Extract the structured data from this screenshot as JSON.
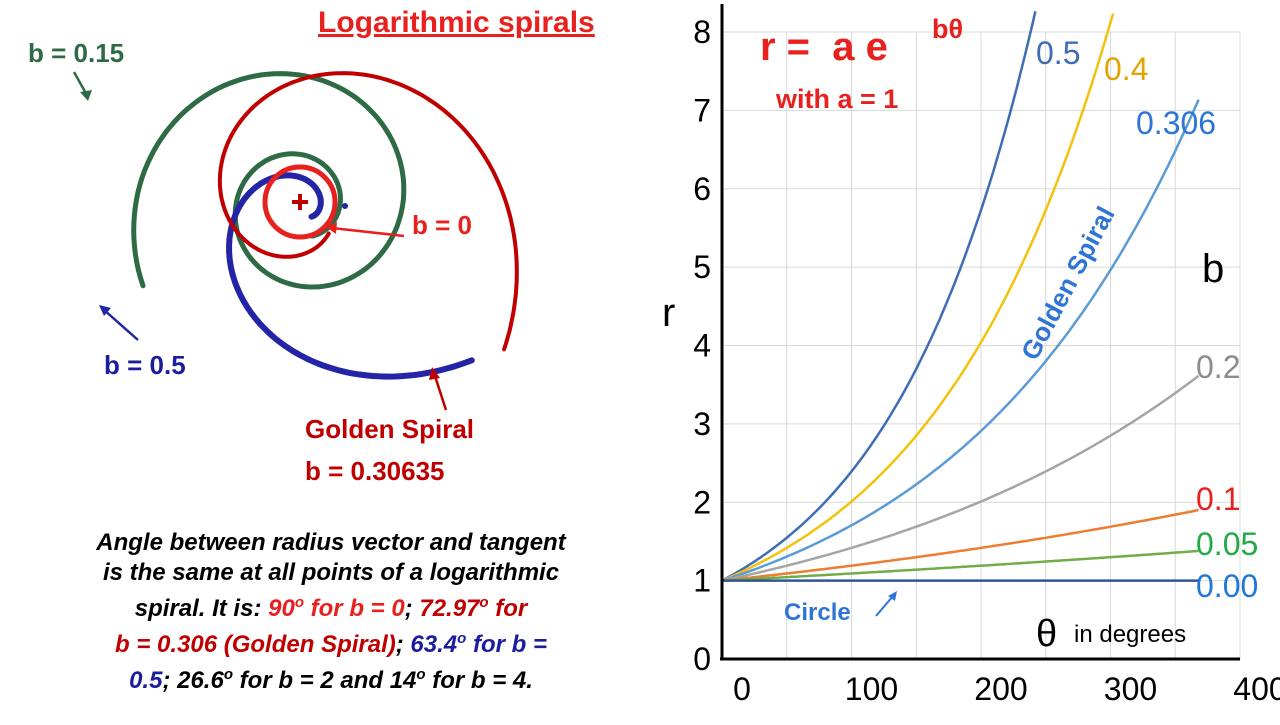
{
  "title": "Logarithmic spirals",
  "spiral_labels": {
    "b015": "b = 0.15",
    "b05": "b = 0.5",
    "b0": "b = 0",
    "golden_name": "Golden Spiral",
    "golden_b": "b = 0.30635"
  },
  "caption": {
    "line1": "Angle between radius vector and tangent",
    "line2": "is the same at all points of a logarithmic",
    "line3a": "spiral.  It is: ",
    "line3b": "90",
    "line3b_sup": "o",
    "line3c": " for b = 0",
    "line3d": "; ",
    "line3e": "72.97",
    "line3e_sup": "o",
    "line3f": " for",
    "line4a": "b = 0.306 (Golden Spiral)",
    "line4b": "; ",
    "line4c": "63.4",
    "line4c_sup": "o",
    "line4d": " for b =",
    "line5a": "0.5",
    "line5b": "; 26.6",
    "line5b_sup": "o",
    "line5c": " for b = 2 and 14",
    "line5c_sup": "o",
    "line5d": " for b = 4."
  },
  "colors": {
    "red": "#e8201e",
    "dark_red": "#c00000",
    "green": "#2e6b45",
    "blue": "#2424a6",
    "b_0_5": "#3f6db5",
    "b_0_4": "#f4c20d",
    "b_0_306": "#5b9bd5",
    "b_0_2": "#a5a5a5",
    "b_0_1": "#ed7d31",
    "b_0_05": "#70ad47",
    "b_0_00": "#2f5597"
  },
  "chart_data": {
    "type": "line",
    "formula_main": "r =  a e",
    "formula_exp": "bθ",
    "formula_sub": "with a = 1",
    "xlabel_symbol": "θ",
    "xlabel_text": "in degrees",
    "ylabel": "r",
    "legend_title": "b",
    "xlim": [
      0,
      400
    ],
    "ylim": [
      0,
      8
    ],
    "x_ticks": [
      "0",
      "100",
      "200",
      "300",
      "400"
    ],
    "y_ticks": [
      "0",
      "1",
      "2",
      "3",
      "4",
      "5",
      "6",
      "7",
      "8"
    ],
    "grid": true,
    "series": [
      {
        "name": "0.5",
        "b": 0.5,
        "color": "#3f6db5",
        "label_color": "#3f6db5"
      },
      {
        "name": "0.4",
        "b": 0.4,
        "color": "#f4c20d",
        "label_color": "#e3a400"
      },
      {
        "name": "0.306",
        "b": 0.306,
        "color": "#5b9bd5",
        "label_color": "#2e75d6"
      },
      {
        "name": "0.2",
        "b": 0.2,
        "color": "#a5a5a5",
        "label_color": "#8c8c8c"
      },
      {
        "name": "0.1",
        "b": 0.1,
        "color": "#ed7d31",
        "label_color": "#e8201e"
      },
      {
        "name": "0.05",
        "b": 0.05,
        "color": "#70ad47",
        "label_color": "#23a84a"
      },
      {
        "name": "0.00",
        "b": 0.0,
        "color": "#2f5597",
        "label_color": "#1e78d8"
      }
    ],
    "annotations": {
      "golden_spiral": "Golden Spiral",
      "circle": "Circle"
    }
  }
}
